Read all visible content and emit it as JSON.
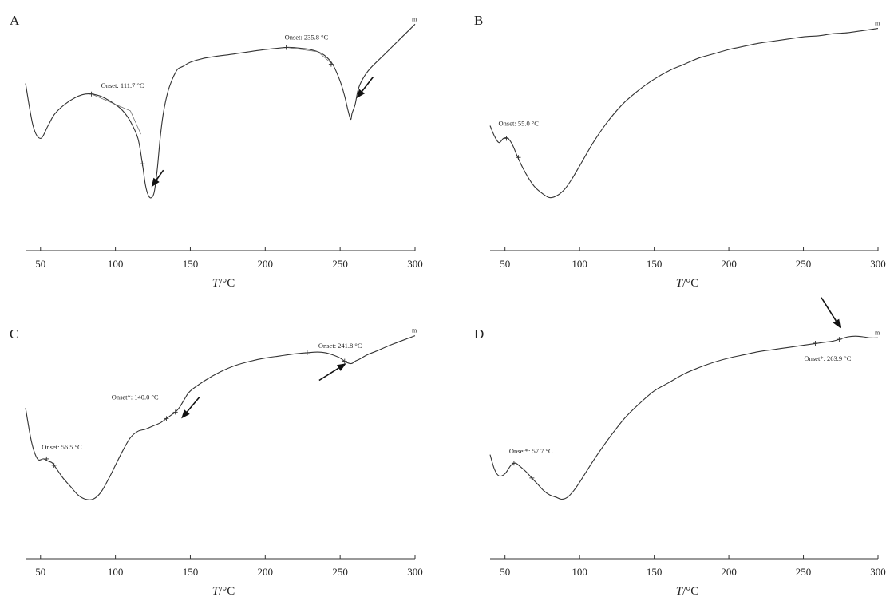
{
  "chart_data": [
    {
      "type": "line",
      "panel": "A",
      "xlabel": "T/°C",
      "xlim": [
        40,
        300
      ],
      "xticks": [
        50,
        100,
        150,
        200,
        250,
        300
      ],
      "end_label": "m",
      "series": [
        {
          "x": [
            40,
            45,
            50,
            55,
            60,
            70,
            80,
            90,
            100,
            105,
            110,
            115,
            118,
            120,
            122,
            124,
            126,
            128,
            130,
            132,
            135,
            138,
            140,
            142,
            145,
            150,
            160,
            180,
            200,
            215,
            225,
            230,
            235,
            240,
            245,
            250,
            253,
            255,
            257,
            258,
            260,
            262,
            265,
            270,
            280,
            290,
            300
          ],
          "y": [
            0.7,
            0.5,
            0.44,
            0.5,
            0.56,
            0.62,
            0.65,
            0.64,
            0.6,
            0.57,
            0.52,
            0.44,
            0.32,
            0.22,
            0.17,
            0.16,
            0.19,
            0.3,
            0.45,
            0.56,
            0.66,
            0.72,
            0.75,
            0.77,
            0.78,
            0.8,
            0.82,
            0.84,
            0.86,
            0.87,
            0.865,
            0.86,
            0.85,
            0.83,
            0.79,
            0.71,
            0.64,
            0.58,
            0.53,
            0.56,
            0.6,
            0.67,
            0.72,
            0.77,
            0.84,
            0.91,
            0.98
          ]
        }
      ],
      "annotations": [
        {
          "text": "Onset: 111.7 °C",
          "x": 84,
          "y": 0.65,
          "tangent": [
            84,
            0.65,
            110,
            0.57,
            117,
            0.46
          ]
        },
        {
          "text": "Onset: 235.8 °C",
          "x": 214,
          "y": 0.87,
          "tangent": [
            214,
            0.87,
            235,
            0.85,
            245,
            0.79
          ]
        }
      ],
      "markers": [
        [
          84,
          0.65
        ],
        [
          214,
          0.87
        ],
        [
          118,
          0.32
        ],
        [
          244,
          0.79
        ]
      ],
      "arrows": [
        {
          "from": [
            132,
            0.29
          ],
          "to": [
            124,
            0.21
          ]
        },
        {
          "from": [
            272,
            0.73
          ],
          "to": [
            261,
            0.63
          ]
        }
      ]
    },
    {
      "type": "line",
      "panel": "B",
      "xlabel": "T/°C",
      "xlim": [
        40,
        300
      ],
      "xticks": [
        50,
        100,
        150,
        200,
        250,
        300
      ],
      "end_label": "m",
      "series": [
        {
          "x": [
            40,
            43,
            46,
            49,
            52,
            55,
            58,
            62,
            66,
            70,
            75,
            80,
            85,
            90,
            95,
            100,
            110,
            120,
            130,
            140,
            150,
            160,
            170,
            180,
            190,
            200,
            210,
            220,
            230,
            240,
            250,
            260,
            270,
            280,
            290,
            300
          ],
          "y": [
            0.5,
            0.45,
            0.42,
            0.44,
            0.44,
            0.41,
            0.36,
            0.3,
            0.25,
            0.21,
            0.18,
            0.16,
            0.17,
            0.2,
            0.25,
            0.31,
            0.43,
            0.53,
            0.61,
            0.67,
            0.72,
            0.76,
            0.79,
            0.82,
            0.84,
            0.86,
            0.875,
            0.89,
            0.9,
            0.91,
            0.92,
            0.925,
            0.935,
            0.94,
            0.95,
            0.96
          ]
        }
      ],
      "annotations": [
        {
          "text": "Onset: 55.0 °C",
          "x": 51,
          "y": 0.44
        }
      ],
      "markers": [
        [
          51,
          0.44
        ],
        [
          59,
          0.35
        ]
      ],
      "arrows": []
    },
    {
      "type": "line",
      "panel": "C",
      "xlabel": "T/°C",
      "xlim": [
        40,
        300
      ],
      "xticks": [
        50,
        100,
        150,
        200,
        250,
        300
      ],
      "end_label": "m",
      "series": [
        {
          "x": [
            40,
            44,
            48,
            52,
            55,
            58,
            61,
            65,
            70,
            75,
            80,
            85,
            90,
            95,
            100,
            105,
            110,
            115,
            120,
            125,
            130,
            134,
            138,
            140,
            143,
            146,
            150,
            160,
            170,
            180,
            190,
            200,
            210,
            220,
            228,
            235,
            240,
            245,
            250,
            253,
            256,
            258,
            260,
            263,
            268,
            275,
            285,
            300
          ],
          "y": [
            0.62,
            0.46,
            0.38,
            0.38,
            0.37,
            0.36,
            0.33,
            0.29,
            0.25,
            0.21,
            0.19,
            0.19,
            0.22,
            0.28,
            0.35,
            0.42,
            0.48,
            0.51,
            0.52,
            0.535,
            0.55,
            0.57,
            0.59,
            0.6,
            0.625,
            0.66,
            0.7,
            0.75,
            0.79,
            0.82,
            0.84,
            0.855,
            0.865,
            0.875,
            0.88,
            0.883,
            0.88,
            0.87,
            0.855,
            0.84,
            0.83,
            0.83,
            0.84,
            0.85,
            0.87,
            0.89,
            0.92,
            0.96
          ]
        }
      ],
      "annotations": [
        {
          "text": "Onset: 56.5 °C",
          "x": 54,
          "y": 0.38
        },
        {
          "text": "Onset*: 140.0 °C",
          "x": 140,
          "y": 0.6
        },
        {
          "text": "Onset: 241.8 °C",
          "x": 228,
          "y": 0.88
        }
      ],
      "markers": [
        [
          54,
          0.38
        ],
        [
          59,
          0.35
        ],
        [
          134,
          0.57
        ],
        [
          140,
          0.6
        ],
        [
          228,
          0.88
        ],
        [
          253,
          0.84
        ]
      ],
      "arrows": [
        {
          "from": [
            156,
            0.67
          ],
          "to": [
            144,
            0.57
          ]
        },
        {
          "from": [
            236,
            0.75
          ],
          "to": [
            254,
            0.83
          ]
        }
      ]
    },
    {
      "type": "line",
      "panel": "D",
      "xlabel": "T/°C",
      "xlim": [
        40,
        300
      ],
      "xticks": [
        50,
        100,
        150,
        200,
        250,
        300
      ],
      "end_label": "m",
      "series": [
        {
          "x": [
            40,
            43,
            46,
            50,
            54,
            57,
            60,
            64,
            68,
            72,
            76,
            80,
            84,
            88,
            92,
            96,
            100,
            110,
            120,
            130,
            140,
            150,
            160,
            170,
            180,
            190,
            200,
            210,
            220,
            230,
            240,
            250,
            260,
            265,
            270,
            275,
            280,
            285,
            290,
            295,
            300
          ],
          "y": [
            0.4,
            0.33,
            0.3,
            0.31,
            0.35,
            0.36,
            0.345,
            0.32,
            0.29,
            0.26,
            0.23,
            0.21,
            0.2,
            0.19,
            0.2,
            0.23,
            0.27,
            0.38,
            0.48,
            0.57,
            0.64,
            0.7,
            0.74,
            0.78,
            0.81,
            0.835,
            0.855,
            0.87,
            0.885,
            0.895,
            0.905,
            0.915,
            0.925,
            0.93,
            0.935,
            0.945,
            0.955,
            0.958,
            0.955,
            0.95,
            0.95
          ]
        }
      ],
      "annotations": [
        {
          "text": "Onset*: 57.7 °C",
          "x": 56,
          "y": 0.36
        },
        {
          "text": "Onset*: 263.9 °C",
          "x": 258,
          "y": 0.925
        }
      ],
      "markers": [
        [
          56,
          0.36
        ],
        [
          68,
          0.29
        ],
        [
          258,
          0.925
        ],
        [
          274,
          0.943
        ]
      ],
      "arrows": [
        {
          "from": [
            262,
            1.14
          ],
          "to": [
            275,
            0.995
          ]
        }
      ]
    }
  ]
}
